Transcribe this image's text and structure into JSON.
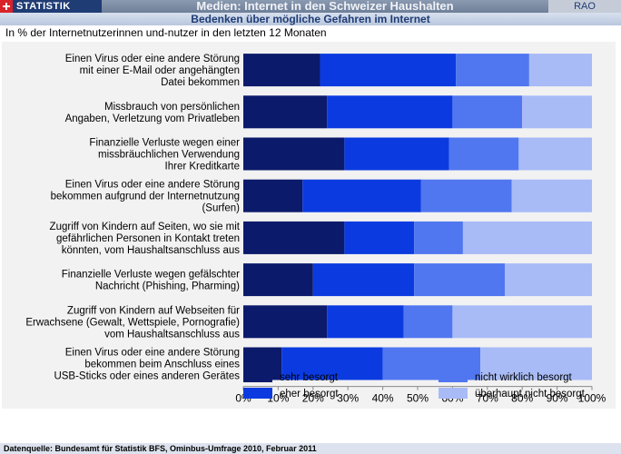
{
  "header": {
    "brand": "STATISTIK",
    "title": "Medien: Internet in den Schweizer Haushalten",
    "code": "RAO"
  },
  "subtitle": "Bedenken über mögliche Gefahren im Internet",
  "unit_label": "In % der Internetnutzerinnen und-nutzer in den letzten 12 Monaten",
  "footer": "Datenquelle: Bundesamt für Statistik BFS, Ominbus-Umfrage 2010, Februar 2011",
  "colors": [
    "#0c1a6b",
    "#0b3be0",
    "#5077f0",
    "#a8bbf7"
  ],
  "chart_data": {
    "type": "bar",
    "orientation": "horizontal",
    "stacked": true,
    "categories": [
      [
        "Einen Virus oder eine andere Störung",
        "mit einer E-Mail oder angehängten",
        "Datei bekommen"
      ],
      [
        "Missbrauch von persönlichen",
        "Angaben, Verletzung vom Privatleben"
      ],
      [
        "Finanzielle Verluste wegen einer",
        "missbräuchlichen Verwendung",
        "Ihrer Kreditkarte"
      ],
      [
        "Einen Virus oder eine andere Störung",
        "bekommen aufgrund der Internetnutzung",
        "(Surfen)"
      ],
      [
        "Zugriff von Kindern auf Seiten, wo sie mit",
        "gefährlichen Personen in Kontakt treten",
        "könnten, vom Haushaltsanschluss aus"
      ],
      [
        "Finanzielle Verluste wegen gefälschter",
        "Nachricht (Phishing, Pharming)"
      ],
      [
        "Zugriff von Kindern auf Webseiten für",
        "Erwachsene (Gewalt, Wettspiele, Pornografie)",
        "vom Haushaltsanschluss aus"
      ],
      [
        "Einen Virus oder eine andere Störung",
        "bekommen beim Anschluss eines",
        "USB-Sticks oder eines anderen Gerätes"
      ]
    ],
    "series": [
      {
        "name": "sehr besorgt",
        "values": [
          22,
          24,
          29,
          17,
          29,
          20,
          24,
          11
        ]
      },
      {
        "name": "eher besorgt",
        "values": [
          39,
          36,
          30,
          34,
          20,
          29,
          22,
          29
        ]
      },
      {
        "name": "nicht wirklich besorgt",
        "values": [
          21,
          20,
          20,
          26,
          14,
          26,
          14,
          28
        ]
      },
      {
        "name": "überhaupt nicht besorgt",
        "values": [
          18,
          20,
          21,
          23,
          37,
          25,
          40,
          32
        ]
      }
    ],
    "xlim": [
      0,
      100
    ],
    "xticks": [
      "0%",
      "10%",
      "20%",
      "30%",
      "40%",
      "50%",
      "60%",
      "70%",
      "80%",
      "90%",
      "100%"
    ],
    "legend_position": "bottom"
  }
}
